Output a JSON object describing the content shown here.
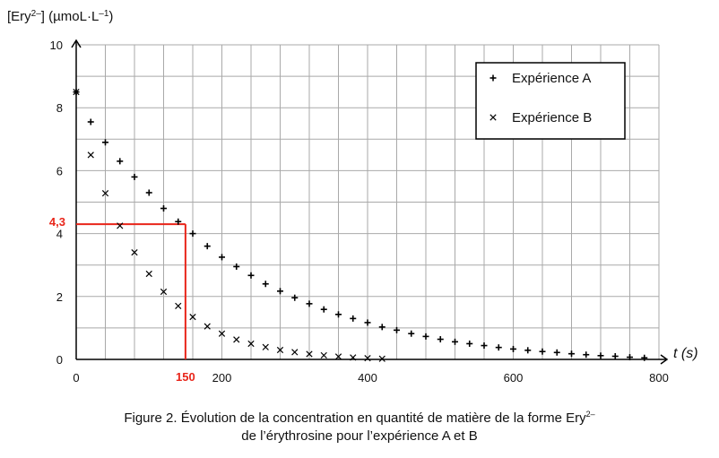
{
  "chart_data": {
    "type": "scatter",
    "ylabel": "[Ery2–] (µmoL·L–1)",
    "ylabel_parts": {
      "a": "[Ery",
      "sup1": "2–",
      "b": "] (µmoL·L",
      "sup2": "–1",
      "c": ")"
    },
    "xlabel": "t (s)",
    "xlim": [
      0,
      800
    ],
    "ylim": [
      0,
      10
    ],
    "x_ticks": [
      0,
      200,
      400,
      600,
      800
    ],
    "y_ticks": [
      0,
      2,
      4,
      6,
      8,
      10
    ],
    "grid": true,
    "legend_position": "top-right",
    "series": [
      {
        "name": "Expérience A",
        "marker": "+",
        "x": [
          0,
          20,
          40,
          60,
          80,
          100,
          120,
          140,
          160,
          180,
          200,
          220,
          240,
          260,
          280,
          300,
          320,
          340,
          360,
          380,
          400,
          420,
          440,
          460,
          480,
          500,
          520,
          540,
          560,
          580,
          600,
          620,
          640,
          660,
          680,
          700,
          720,
          740,
          760,
          780
        ],
        "y": [
          8.5,
          7.55,
          6.9,
          6.3,
          5.8,
          5.3,
          4.8,
          4.38,
          4.0,
          3.6,
          3.25,
          2.95,
          2.67,
          2.4,
          2.17,
          1.96,
          1.77,
          1.59,
          1.43,
          1.3,
          1.17,
          1.03,
          0.93,
          0.82,
          0.73,
          0.64,
          0.56,
          0.5,
          0.44,
          0.38,
          0.33,
          0.29,
          0.25,
          0.22,
          0.18,
          0.15,
          0.12,
          0.1,
          0.07,
          0.05
        ]
      },
      {
        "name": "Expérience B",
        "marker": "x",
        "x": [
          0,
          20,
          40,
          60,
          80,
          100,
          120,
          140,
          160,
          180,
          200,
          220,
          240,
          260,
          280,
          300,
          320,
          340,
          360,
          380,
          400,
          420
        ],
        "y": [
          8.5,
          6.5,
          5.28,
          4.25,
          3.4,
          2.72,
          2.15,
          1.7,
          1.35,
          1.05,
          0.82,
          0.63,
          0.5,
          0.39,
          0.3,
          0.23,
          0.17,
          0.13,
          0.09,
          0.06,
          0.04,
          0.02
        ]
      }
    ],
    "annotations": {
      "marker_y_label": "4,3",
      "marker_x_label": "150",
      "marker_y": 4.3,
      "marker_x": 150,
      "color": "#e8251a"
    }
  },
  "caption": {
    "line1_a": "Figure 2. Évolution de la concentration en quantité de matière de la forme Ery",
    "line1_sup": "2–",
    "line2": "de l’érythrosine pour l’expérience A et B"
  }
}
